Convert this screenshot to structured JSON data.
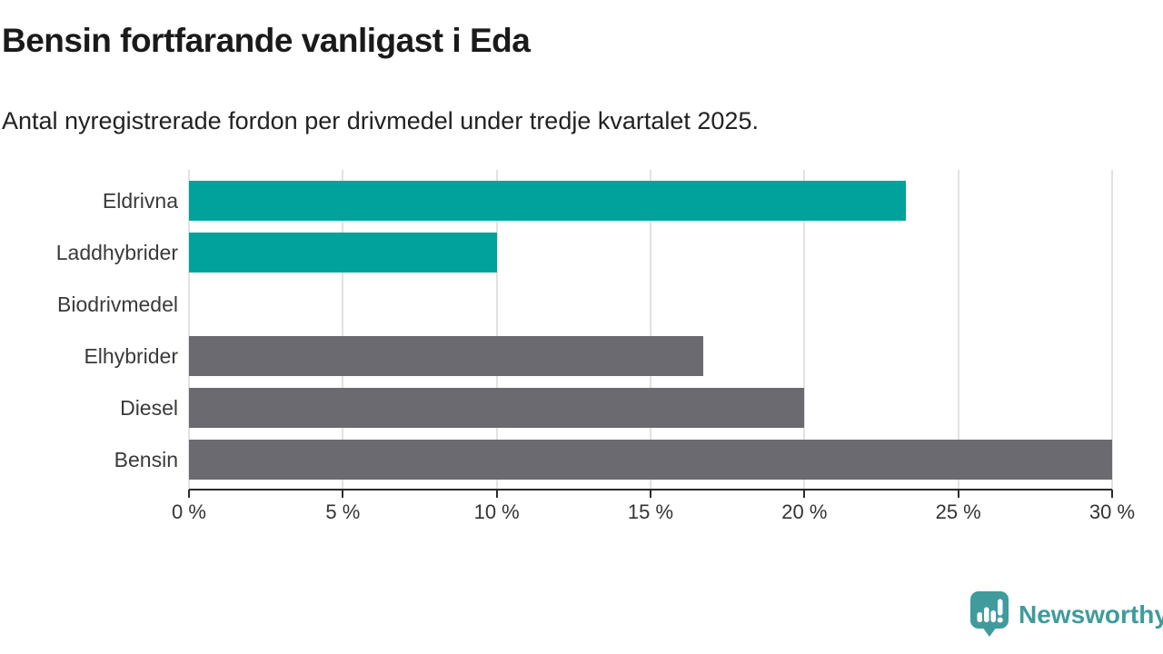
{
  "title": "Bensin fortfarande vanligast i Eda",
  "subtitle": "Antal nyregistrerade fordon per drivmedel under tredje kvartalet 2025.",
  "chart_data": {
    "type": "bar",
    "orientation": "horizontal",
    "title": "Bensin fortfarande vanligast i Eda",
    "subtitle": "Antal nyregistrerade fordon per drivmedel under tredje kvartalet 2025.",
    "categories": [
      "Eldrivna",
      "Laddhybrider",
      "Biodrivmedel",
      "Elhybrider",
      "Diesel",
      "Bensin"
    ],
    "values": [
      23.3,
      10,
      0,
      16.7,
      20,
      30
    ],
    "unit": "%",
    "xlim": [
      0,
      30
    ],
    "xticks": [
      0,
      5,
      10,
      15,
      20,
      25,
      30
    ],
    "xtick_labels": [
      "0 %",
      "5 %",
      "10 %",
      "15 %",
      "20 %",
      "25 %",
      "30 %"
    ],
    "grid": "vertical-only",
    "legend": "none",
    "bar_colors": [
      "#00a29b",
      "#00a29b",
      "#00a29b",
      "#6a6a70",
      "#6a6a70",
      "#6a6a70"
    ],
    "colors": {
      "highlight_teal": "#00a29b",
      "neutral_gray": "#6a6a70",
      "gridline": "#e2e2e2",
      "axis_line": "#2b2b2b",
      "tick_label": "#333333",
      "category_label": "#3a3a3a"
    }
  },
  "branding": {
    "name": "Newsworthy",
    "color": "#3f9b9c",
    "icon": "speech-bubble-with-bar-chart-and-exclamation"
  }
}
